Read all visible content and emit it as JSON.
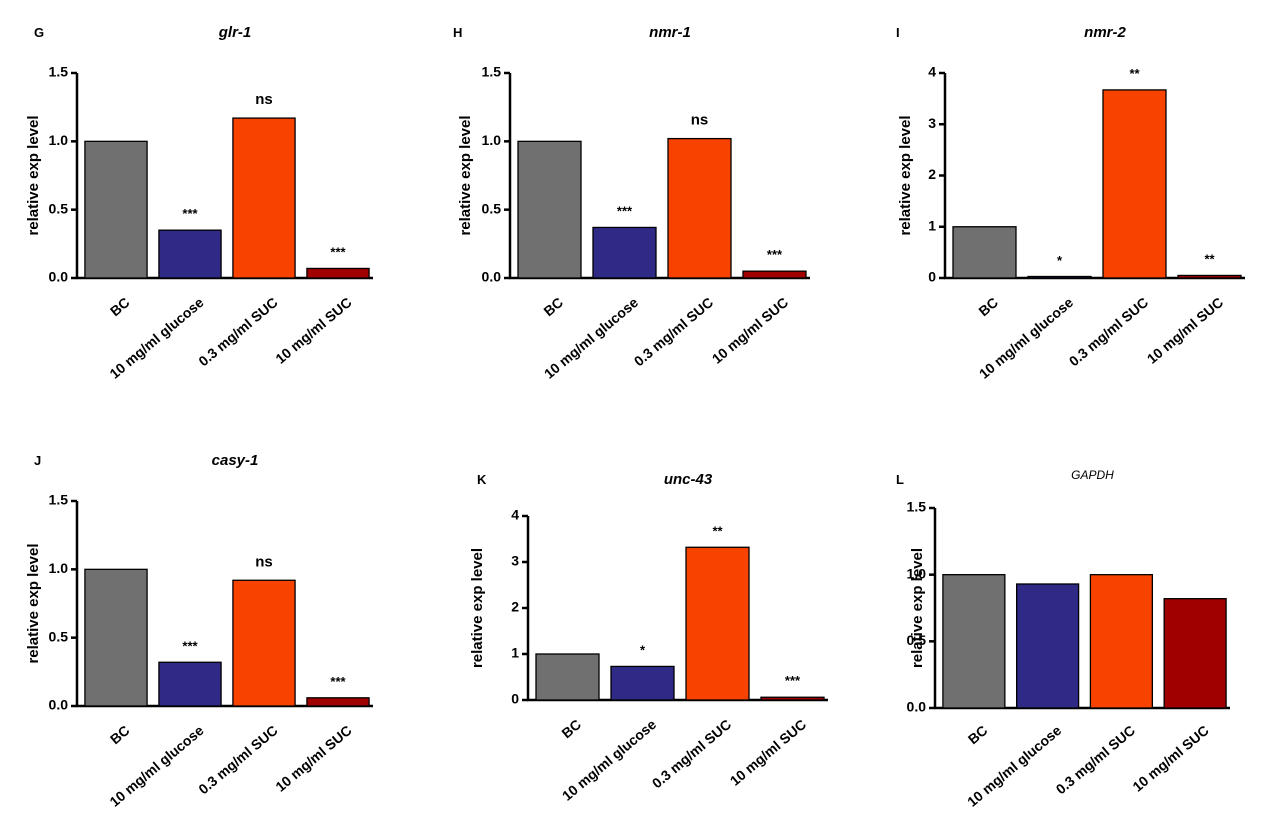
{
  "chart_data": [
    {
      "panel": "G",
      "type": "bar",
      "title": "glr-1",
      "title_style": "bold-italic",
      "ylabel": "relative exp level",
      "ylim": [
        0,
        1.5
      ],
      "yticks": [
        "0.0",
        "0.5",
        "1.0",
        "1.5"
      ],
      "categories": [
        "BC",
        "10 mg/ml glucose",
        "0.3 mg/ml SUC",
        "10 mg/ml SUC"
      ],
      "values": [
        1.0,
        0.35,
        1.17,
        0.07
      ],
      "annotations": [
        "",
        "***",
        "ns",
        "***"
      ]
    },
    {
      "panel": "H",
      "type": "bar",
      "title": "nmr-1",
      "title_style": "bold-italic",
      "ylabel": "relative exp level",
      "ylim": [
        0,
        1.5
      ],
      "yticks": [
        "0.0",
        "0.5",
        "1.0",
        "1.5"
      ],
      "categories": [
        "BC",
        "10 mg/ml glucose",
        "0.3 mg/ml SUC",
        "10 mg/ml SUC"
      ],
      "values": [
        1.0,
        0.37,
        1.02,
        0.05
      ],
      "annotations": [
        "",
        "***",
        "ns",
        "***"
      ]
    },
    {
      "panel": "I",
      "type": "bar",
      "title": "nmr-2",
      "title_style": "bold-italic",
      "ylabel": "relative exp level",
      "ylim": [
        0,
        4
      ],
      "yticks": [
        "0",
        "1",
        "2",
        "3",
        "4"
      ],
      "categories": [
        "BC",
        "10 mg/ml glucose",
        "0.3 mg/ml SUC",
        "10 mg/ml SUC"
      ],
      "values": [
        1.0,
        0.02,
        3.67,
        0.05
      ],
      "annotations": [
        "",
        "*",
        "**",
        "**"
      ]
    },
    {
      "panel": "J",
      "type": "bar",
      "title": "casy-1",
      "title_style": "bold-italic",
      "ylabel": "relative exp level",
      "ylim": [
        0,
        1.5
      ],
      "yticks": [
        "0.0",
        "0.5",
        "1.0",
        "1.5"
      ],
      "categories": [
        "BC",
        "10 mg/ml glucose",
        "0.3 mg/ml SUC",
        "10 mg/ml SUC"
      ],
      "values": [
        1.0,
        0.32,
        0.92,
        0.06
      ],
      "annotations": [
        "",
        "***",
        "ns",
        "***"
      ]
    },
    {
      "panel": "K",
      "type": "bar",
      "title": "unc-43",
      "title_style": "bold-italic",
      "ylabel": "relative exp level",
      "ylim": [
        0,
        4
      ],
      "yticks": [
        "0",
        "1",
        "2",
        "3",
        "4"
      ],
      "categories": [
        "BC",
        "10 mg/ml glucose",
        "0.3 mg/ml SUC",
        "10 mg/ml SUC"
      ],
      "values": [
        1.0,
        0.73,
        3.32,
        0.06
      ],
      "annotations": [
        "",
        "*",
        "**",
        "***"
      ]
    },
    {
      "panel": "L",
      "type": "bar",
      "title": "GAPDH",
      "title_style": "italic",
      "ylabel": "relative exp level",
      "ylim": [
        0,
        1.5
      ],
      "yticks": [
        "0.0",
        "0.5",
        "1.0",
        "1.5"
      ],
      "categories": [
        "BC",
        "10 mg/ml glucose",
        "0.3 mg/ml SUC",
        "10 mg/ml SUC"
      ],
      "values": [
        1.0,
        0.93,
        1.0,
        0.82
      ],
      "annotations": [
        "",
        "",
        "",
        ""
      ]
    }
  ],
  "colors": {
    "bars": [
      "#707070",
      "#2e2a86",
      "#f84300",
      "#a00000"
    ],
    "axis": "#000000"
  }
}
